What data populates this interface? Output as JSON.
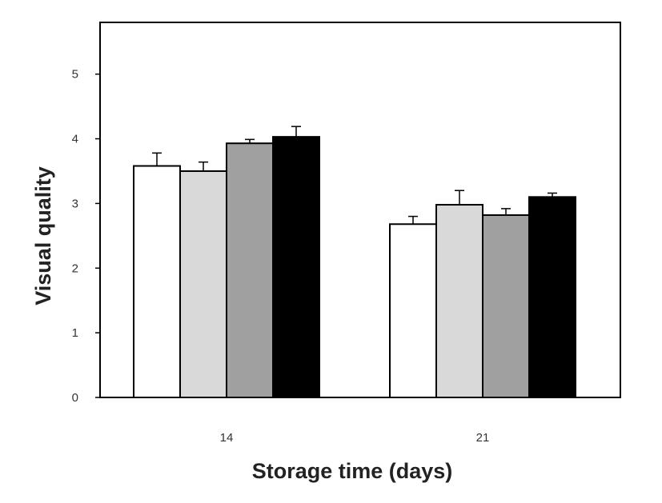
{
  "chart_data": {
    "type": "bar",
    "title": "",
    "xlabel": "Storage time (days)",
    "ylabel": "Visual quality",
    "categories": [
      "14",
      "21"
    ],
    "ylim": [
      0,
      5.8
    ],
    "yticks": [
      0,
      1,
      2,
      3,
      4,
      5
    ],
    "grid": false,
    "legend": "none",
    "series": [
      {
        "values": [
          3.58,
          2.68
        ],
        "errors": [
          0.2,
          0.12
        ],
        "color": "#ffffff"
      },
      {
        "values": [
          3.5,
          2.98
        ],
        "errors": [
          0.14,
          0.22
        ],
        "color": "#d9d9d9"
      },
      {
        "values": [
          3.93,
          2.82
        ],
        "errors": [
          0.06,
          0.1
        ],
        "color": "#a0a0a0"
      },
      {
        "values": [
          4.03,
          3.1
        ],
        "errors": [
          0.16,
          0.06
        ],
        "color": "#000000"
      }
    ]
  }
}
